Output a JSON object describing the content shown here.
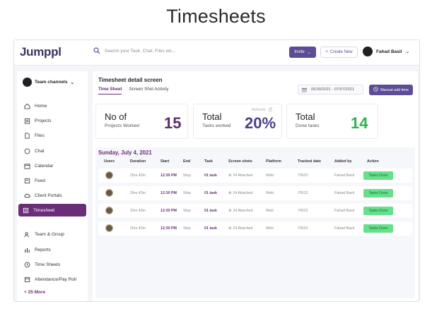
{
  "page": {
    "title": "Timesheets"
  },
  "topbar": {
    "logo": "Jumppl",
    "search_placeholder": "Search your Task, Chat, Files etc...",
    "invite_label": "Invite",
    "create_label": "Create New",
    "user_name": "Fahad Basil"
  },
  "sidebar": {
    "team_label": "Team channels",
    "items": [
      {
        "label": "Home",
        "icon": "home-icon"
      },
      {
        "label": "Projects",
        "icon": "projects-icon"
      },
      {
        "label": "Files",
        "icon": "file-icon"
      },
      {
        "label": "Chat",
        "icon": "chat-icon"
      },
      {
        "label": "Calendar",
        "icon": "calendar-icon"
      },
      {
        "label": "Feed",
        "icon": "feed-icon"
      },
      {
        "label": "Client Portals",
        "icon": "cloud-icon"
      },
      {
        "label": "Timesheet",
        "icon": "timesheet-icon",
        "active": true
      },
      {
        "label": "Team & Group",
        "icon": "team-icon"
      },
      {
        "label": "Reports",
        "icon": "reports-icon"
      },
      {
        "label": "Time Sheets",
        "icon": "clock-icon"
      },
      {
        "label": "Attendance/Pay Roll",
        "icon": "attendance-icon"
      }
    ],
    "more_label": "+ 25 More"
  },
  "main": {
    "title": "Timesheet detail screen",
    "tabs": [
      "Time Sheet",
      "Screen Shot Activity"
    ],
    "date_range": "06/30/2021 - 07/07/2021",
    "add_time_label": "Manual add time",
    "stats": [
      {
        "big": "No of",
        "small": "Projects Worked",
        "value": "15",
        "color": "#5a2f6b"
      },
      {
        "big": "Total",
        "small": "Tasks worked",
        "value": "20%",
        "color": "#4c3f86",
        "refresh": "Refresh"
      },
      {
        "big": "Total",
        "small": "Done tasks",
        "value": "14",
        "color": "#2fb34a"
      }
    ],
    "day_heading": "Sunday, July 4, 2021",
    "columns": [
      "Users",
      "Duration",
      "Start",
      "End",
      "Task",
      "Screen shots",
      "Platform",
      "Tracked date",
      "Added by",
      "Action"
    ],
    "rows": [
      {
        "duration": "2hrs 42m",
        "start": "12:30 PM",
        "end": "Stop",
        "task": "01 task",
        "screenshots": "24 Attached",
        "platform": "Web",
        "tracked": "7/5/21",
        "added_by": "Fahad Basil",
        "action": "Tasks Done"
      },
      {
        "duration": "2hrs 42m",
        "start": "12:30 PM",
        "end": "Stop",
        "task": "01 task",
        "screenshots": "24 Attached",
        "platform": "Web",
        "tracked": "7/5/21",
        "added_by": "Fahad Basil",
        "action": "Tasks Done"
      },
      {
        "duration": "2hrs 42m",
        "start": "12:30 PM",
        "end": "Stop",
        "task": "01 task",
        "screenshots": "24 Attached",
        "platform": "Web",
        "tracked": "7/5/21",
        "added_by": "Fahad Basil",
        "action": "Tasks Done"
      },
      {
        "duration": "2hrs 42m",
        "start": "12:30 PM",
        "end": "Stop",
        "task": "01 task",
        "screenshots": "24 Attached",
        "platform": "Web",
        "tracked": "7/5/21",
        "added_by": "Fahad Basil",
        "action": "Tasks Done"
      }
    ]
  },
  "colors": {
    "accent": "#5d4c96",
    "active_nav": "#6a2d77",
    "done": "#66e08a"
  }
}
